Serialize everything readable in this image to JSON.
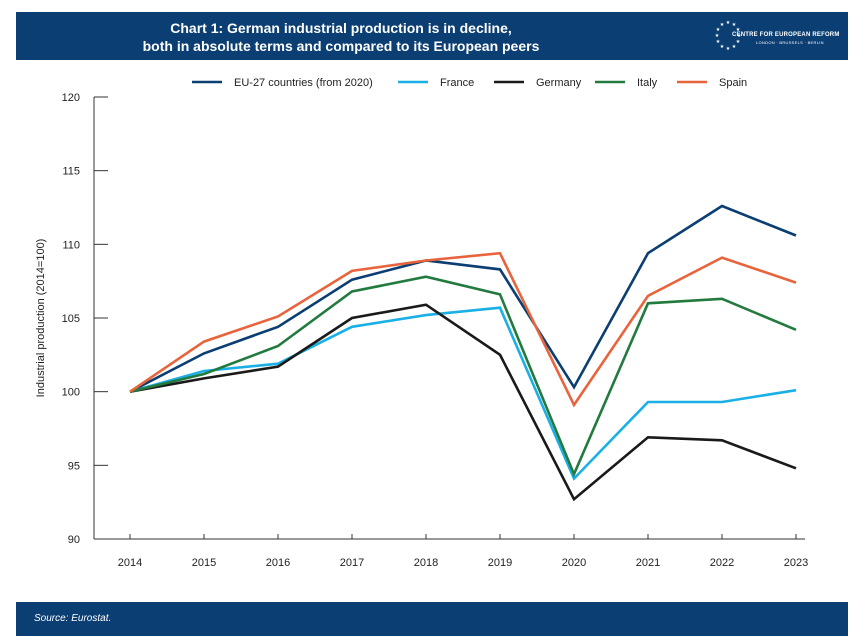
{
  "header": {
    "title_line1": "Chart 1: German industrial production is in decline,",
    "title_line2": "both in absolute terms and compared to its European peers",
    "logo_org": "CENTRE FOR EUROPEAN REFORM",
    "logo_locations": "LONDON · BRUSSELS · BERLIN"
  },
  "footer": {
    "source": "Source: Eurostat."
  },
  "chart_data": {
    "type": "line",
    "title": "Chart 1: German industrial production is in decline, both in absolute terms and compared to its European peers",
    "xlabel": "",
    "ylabel": "Industrial production (2014=100)",
    "x": [
      "2014",
      "2015",
      "2016",
      "2017",
      "2018",
      "2019",
      "2020",
      "2021",
      "2022",
      "2023"
    ],
    "ylim": [
      90,
      120
    ],
    "yticks": [
      90,
      95,
      100,
      105,
      110,
      115,
      120
    ],
    "grid": false,
    "legend_position": "top",
    "series": [
      {
        "name": "EU-27 countries (from 2020)",
        "color": "#0b3e72",
        "values": [
          100,
          102.6,
          104.4,
          107.6,
          108.9,
          108.3,
          100.3,
          109.4,
          112.6,
          110.6
        ]
      },
      {
        "name": "France",
        "color": "#1ab0e6",
        "values": [
          100,
          101.4,
          101.9,
          104.4,
          105.2,
          105.7,
          94.1,
          99.3,
          99.3,
          100.1
        ]
      },
      {
        "name": "Germany",
        "color": "#1a1a1a",
        "values": [
          100,
          100.9,
          101.7,
          105.0,
          105.9,
          102.5,
          92.7,
          96.9,
          96.7,
          94.8
        ]
      },
      {
        "name": "Italy",
        "color": "#237a3f",
        "values": [
          100,
          101.2,
          103.1,
          106.8,
          107.8,
          106.6,
          94.4,
          106.0,
          106.3,
          104.2
        ]
      },
      {
        "name": "Spain",
        "color": "#e8643c",
        "values": [
          100,
          103.4,
          105.1,
          108.2,
          108.9,
          109.4,
          99.1,
          106.5,
          109.1,
          107.4
        ]
      }
    ]
  }
}
